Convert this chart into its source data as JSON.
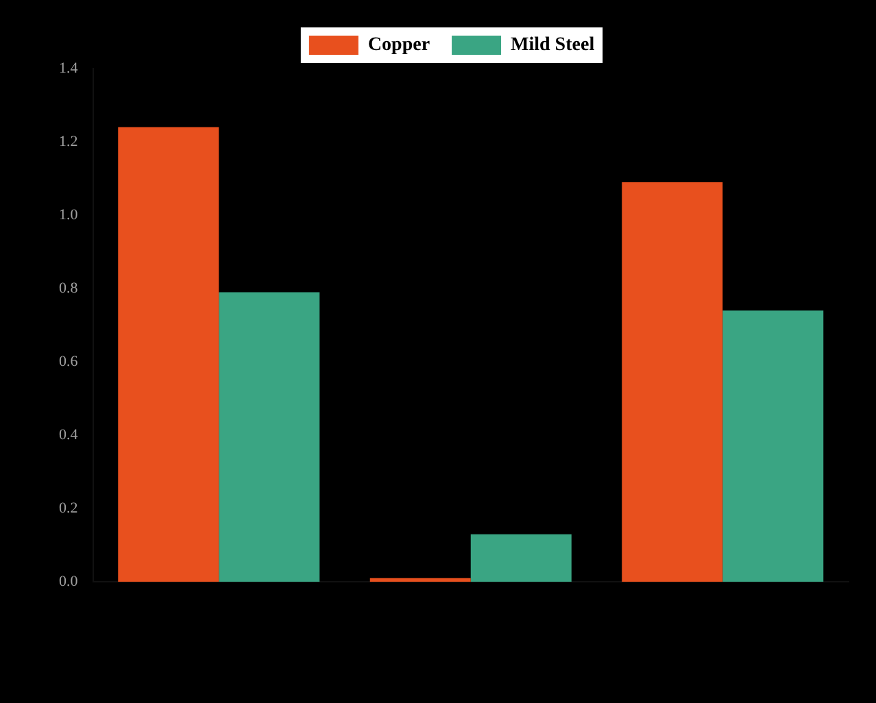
{
  "chart_data": {
    "type": "bar",
    "categories": [
      null,
      null,
      null
    ],
    "series": [
      {
        "name": "Copper",
        "color": "#e8501e",
        "values": [
          1.24,
          0.01,
          1.09
        ]
      },
      {
        "name": "Mild Steel",
        "color": "#3aa583",
        "values": [
          0.79,
          0.13,
          0.74
        ]
      }
    ],
    "ylim": [
      0,
      1.4
    ],
    "yticks": [
      {
        "value": 0,
        "label": "0.0"
      },
      {
        "value": 0.2,
        "label": "0.2"
      },
      {
        "value": 0.4,
        "label": "0.4"
      },
      {
        "value": 0.6,
        "label": "0.6"
      },
      {
        "value": 0.8,
        "label": "0.8"
      },
      {
        "value": 1,
        "label": "1.0"
      },
      {
        "value": 1.2,
        "label": "1.2"
      },
      {
        "value": 1.4,
        "label": "1.4"
      }
    ],
    "legend": "top",
    "grid": false
  }
}
